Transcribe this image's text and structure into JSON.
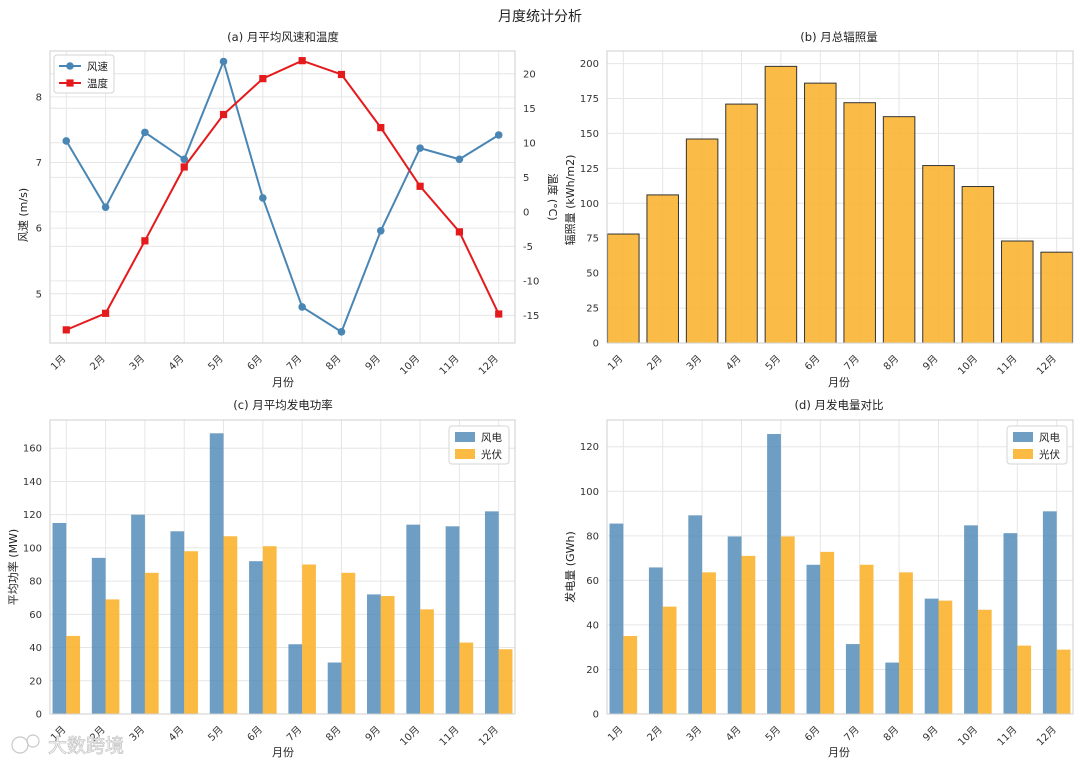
{
  "figure": {
    "title": "月度统计分析",
    "watermark": "大数跨境"
  },
  "colors": {
    "wind": "#4a86b4",
    "temp": "#e41a1c",
    "solar": "#fbb32e",
    "bar_edge": "#333333"
  },
  "chart_data": [
    {
      "type": "line",
      "title": "(a) 月平均风速和温度",
      "xlabel": "月份",
      "ylabel": "风速 (m/s)",
      "y2label": "温度 (°C)",
      "categories": [
        "1月",
        "2月",
        "3月",
        "4月",
        "5月",
        "6月",
        "7月",
        "8月",
        "9月",
        "10月",
        "11月",
        "12月"
      ],
      "ylim": [
        4.25,
        8.7
      ],
      "yticks": [
        5,
        6,
        7,
        8
      ],
      "y2lim": [
        -19,
        23.3
      ],
      "y2ticks": [
        -15,
        -10,
        -5,
        0,
        5,
        10,
        15,
        20
      ],
      "legend": "top-left",
      "series": [
        {
          "name": "风速",
          "axis": "left",
          "marker": "circle",
          "values": [
            7.33,
            6.32,
            7.46,
            7.05,
            8.54,
            6.46,
            4.8,
            4.42,
            5.96,
            7.22,
            7.05,
            7.42
          ]
        },
        {
          "name": "温度",
          "axis": "right",
          "marker": "square",
          "values": [
            -17.1,
            -14.7,
            -4.2,
            6.5,
            14.1,
            19.3,
            21.9,
            19.9,
            12.2,
            3.7,
            -2.9,
            -14.8
          ]
        }
      ]
    },
    {
      "type": "bar",
      "title": "(b) 月总辐照量",
      "xlabel": "月份",
      "ylabel": "辐照量 (kWh/m2)",
      "categories": [
        "1月",
        "2月",
        "3月",
        "4月",
        "5月",
        "6月",
        "7月",
        "8月",
        "9月",
        "10月",
        "11月",
        "12月"
      ],
      "ylim": [
        0,
        209
      ],
      "yticks": [
        0,
        25,
        50,
        75,
        100,
        125,
        150,
        175,
        200
      ],
      "values": [
        78,
        106,
        146,
        171,
        198,
        186,
        172,
        162,
        127,
        112,
        73,
        65
      ]
    },
    {
      "type": "bar",
      "title": "(c) 月平均发电功率",
      "xlabel": "月份",
      "ylabel": "平均功率 (MW)",
      "categories": [
        "1月",
        "2月",
        "3月",
        "4月",
        "5月",
        "6月",
        "7月",
        "8月",
        "9月",
        "10月",
        "11月",
        "12月"
      ],
      "ylim": [
        0,
        177
      ],
      "yticks": [
        0,
        20,
        40,
        60,
        80,
        100,
        120,
        140,
        160
      ],
      "legend": "top-right",
      "series": [
        {
          "name": "风电",
          "values": [
            115,
            94,
            120,
            110,
            169,
            92,
            42,
            31,
            72,
            114,
            113,
            122
          ]
        },
        {
          "name": "光伏",
          "values": [
            47,
            69,
            85,
            98,
            107,
            101,
            90,
            85,
            71,
            63,
            43,
            39
          ]
        }
      ]
    },
    {
      "type": "bar",
      "title": "(d) 月发电量对比",
      "xlabel": "月份",
      "ylabel": "发电量 (GWh)",
      "categories": [
        "1月",
        "2月",
        "3月",
        "4月",
        "5月",
        "6月",
        "7月",
        "8月",
        "9月",
        "10月",
        "11月",
        "12月"
      ],
      "ylim": [
        0,
        132
      ],
      "yticks": [
        0,
        20,
        40,
        60,
        80,
        100,
        120
      ],
      "legend": "top-right",
      "series": [
        {
          "name": "风电",
          "values": [
            85.5,
            65.8,
            89.2,
            79.7,
            125.7,
            67.0,
            31.4,
            23.1,
            51.8,
            84.7,
            81.2,
            91.0
          ]
        },
        {
          "name": "光伏",
          "values": [
            35.0,
            48.2,
            63.6,
            71.0,
            79.7,
            72.8,
            67.0,
            63.6,
            50.9,
            46.8,
            30.7,
            28.9
          ]
        }
      ]
    }
  ]
}
